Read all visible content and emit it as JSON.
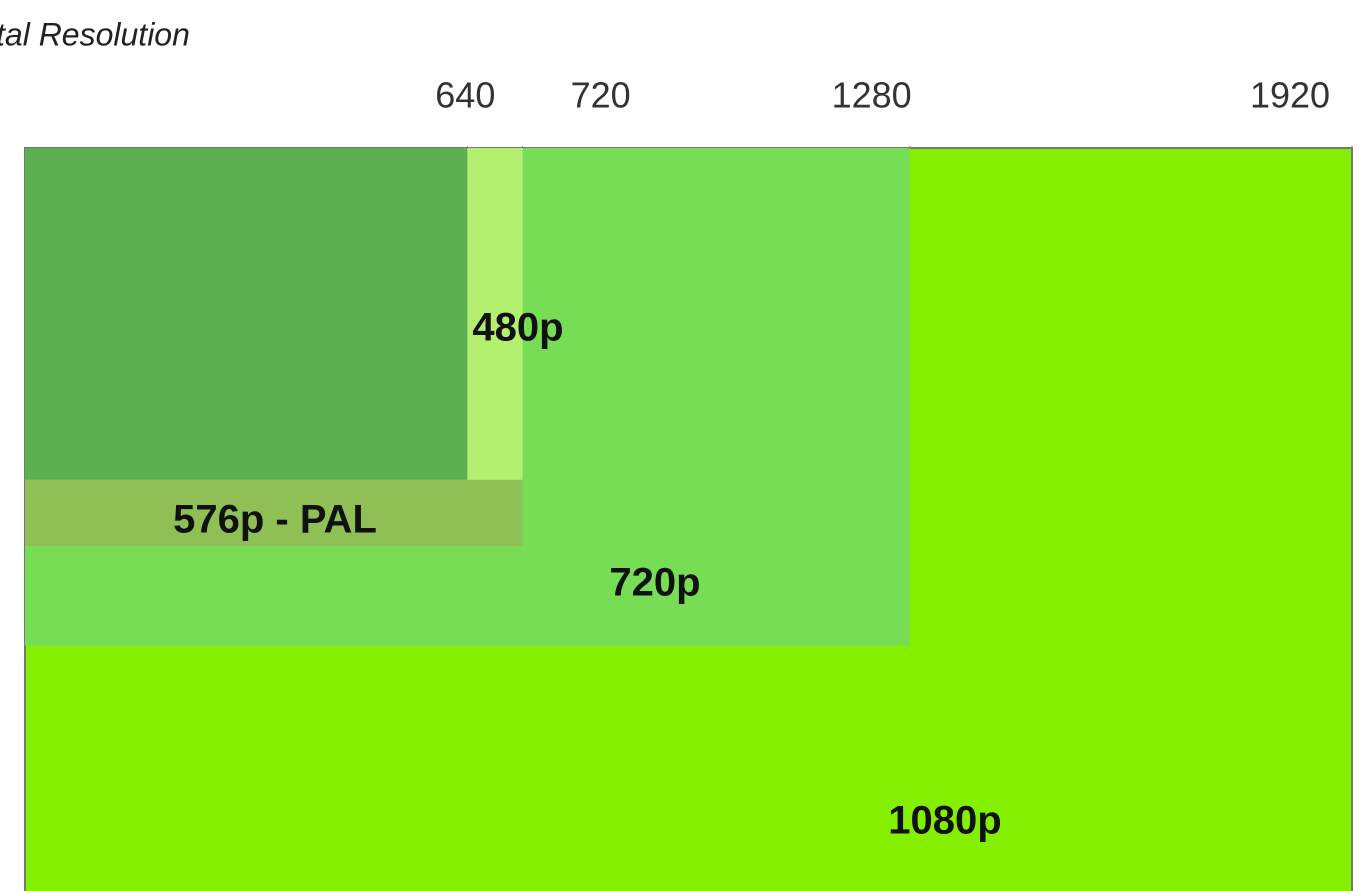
{
  "chart_data": {
    "type": "resolution",
    "x_label": "tal Resolution",
    "xlim": [
      0,
      1920
    ],
    "xticks": [
      640,
      720,
      1280,
      1920
    ],
    "series": [
      {
        "name": "1080p",
        "width": 1920,
        "height": 1080,
        "color": "#84f000"
      },
      {
        "name": "720p",
        "width": 1280,
        "height": 720,
        "color": "#77dd55"
      },
      {
        "name": "576p - PAL",
        "width": 720,
        "height": 576,
        "color": "#8fbf55"
      },
      {
        "name": "480p",
        "width": 720,
        "height": 480,
        "color": "#b3f070"
      },
      {
        "width": 640,
        "height": 480,
        "color": "#5bb04f"
      }
    ]
  }
}
